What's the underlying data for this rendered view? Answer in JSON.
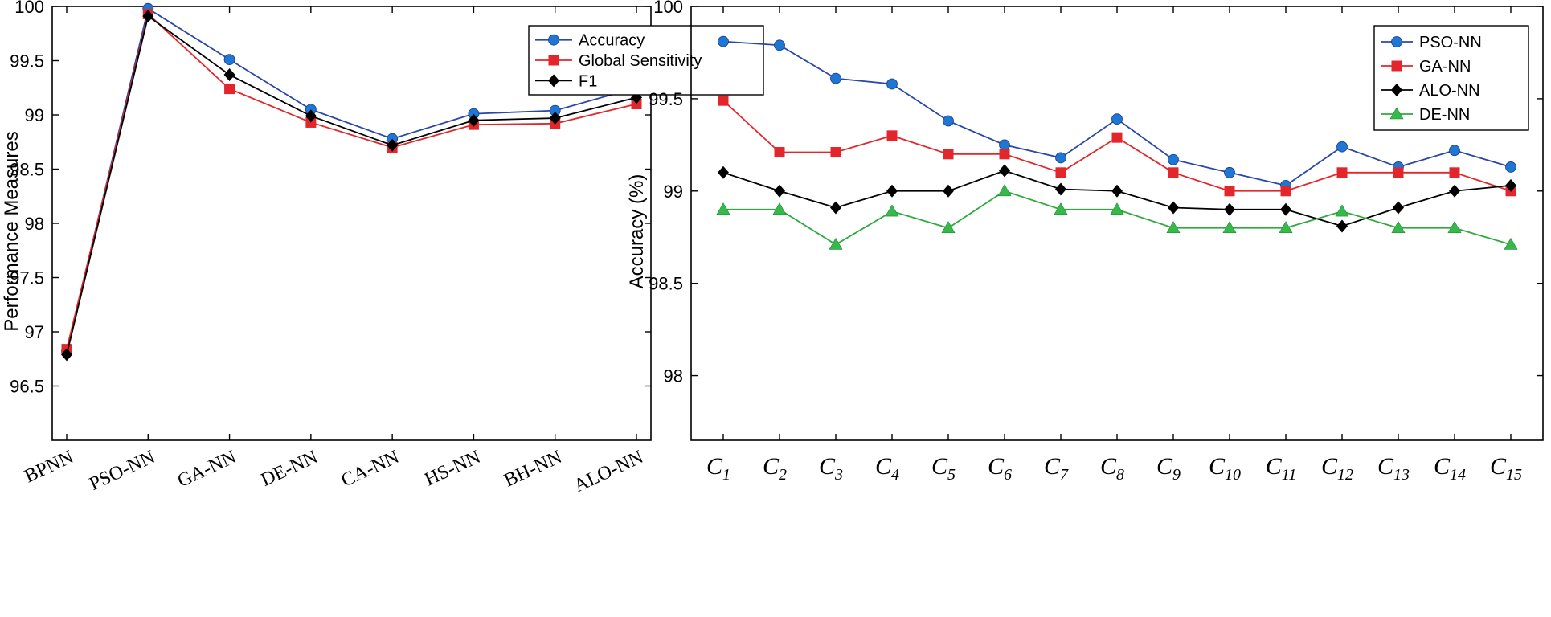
{
  "chart_data": [
    {
      "type": "line",
      "title": "",
      "xlabel": "",
      "ylabel": "Performance Measures",
      "ylim": [
        96,
        100
      ],
      "yticks": [
        "96.5",
        "97",
        "97.5",
        "98",
        "98.5",
        "99",
        "99.5",
        "100"
      ],
      "categories": [
        "BPNN",
        "PSO-NN",
        "GA-NN",
        "DE-NN",
        "CA-NN",
        "HS-NN",
        "BH-NN",
        "ALO-NN"
      ],
      "legend_position": "top-right",
      "series": [
        {
          "name": "Accuracy",
          "color": "#2b47a8",
          "marker": "circle",
          "marker_color": "#1f77d4",
          "values": [
            96.82,
            99.98,
            99.51,
            99.05,
            98.78,
            99.01,
            99.04,
            99.25
          ]
        },
        {
          "name": "Global Sensitivity",
          "color": "#e3262b",
          "marker": "square",
          "marker_color": "#e3262b",
          "values": [
            96.84,
            99.93,
            99.24,
            98.93,
            98.7,
            98.91,
            98.92,
            99.1
          ]
        },
        {
          "name": "F1",
          "color": "#000000",
          "marker": "diamond",
          "marker_color": "#000000",
          "values": [
            96.79,
            99.91,
            99.37,
            98.99,
            98.72,
            98.95,
            98.97,
            99.16
          ]
        }
      ]
    },
    {
      "type": "line",
      "title": "",
      "xlabel": "",
      "ylabel": "Accuracy (%)",
      "ylim": [
        97.65,
        100
      ],
      "yticks": [
        "98",
        "98.5",
        "99",
        "99.5",
        "100"
      ],
      "categories": [
        {
          "base": "C",
          "sub": "1"
        },
        {
          "base": "C",
          "sub": "2"
        },
        {
          "base": "C",
          "sub": "3"
        },
        {
          "base": "C",
          "sub": "4"
        },
        {
          "base": "C",
          "sub": "5"
        },
        {
          "base": "C",
          "sub": "6"
        },
        {
          "base": "C",
          "sub": "7"
        },
        {
          "base": "C",
          "sub": "8"
        },
        {
          "base": "C",
          "sub": "9"
        },
        {
          "base": "C",
          "sub": "10"
        },
        {
          "base": "C",
          "sub": "11"
        },
        {
          "base": "C",
          "sub": "12"
        },
        {
          "base": "C",
          "sub": "13"
        },
        {
          "base": "C",
          "sub": "14"
        },
        {
          "base": "C",
          "sub": "15"
        }
      ],
      "legend_position": "top-right",
      "series": [
        {
          "name": "PSO-NN",
          "color": "#2b47a8",
          "marker": "circle",
          "marker_color": "#1f77d4",
          "values": [
            99.81,
            99.79,
            99.61,
            99.58,
            99.38,
            99.25,
            99.18,
            99.39,
            99.17,
            99.1,
            99.03,
            99.24,
            99.13,
            99.22,
            99.13
          ]
        },
        {
          "name": "GA-NN",
          "color": "#e3262b",
          "marker": "square",
          "marker_color": "#e3262b",
          "values": [
            99.49,
            99.21,
            99.21,
            99.3,
            99.2,
            99.2,
            99.1,
            99.29,
            99.1,
            99.0,
            99.0,
            99.1,
            99.1,
            99.1,
            99.0
          ]
        },
        {
          "name": "ALO-NN",
          "color": "#000000",
          "marker": "diamond",
          "marker_color": "#000000",
          "values": [
            99.1,
            99.0,
            98.91,
            99.0,
            99.0,
            99.11,
            99.01,
            99.0,
            98.91,
            98.9,
            98.9,
            98.81,
            98.91,
            99.0,
            99.03
          ]
        },
        {
          "name": "DE-NN",
          "color": "#2eaa3c",
          "marker": "triangle",
          "marker_color": "#35b94a",
          "values": [
            98.9,
            98.9,
            98.71,
            98.89,
            98.8,
            99.0,
            98.9,
            98.9,
            98.8,
            98.8,
            98.8,
            98.89,
            98.8,
            98.8,
            98.71
          ]
        }
      ]
    }
  ]
}
